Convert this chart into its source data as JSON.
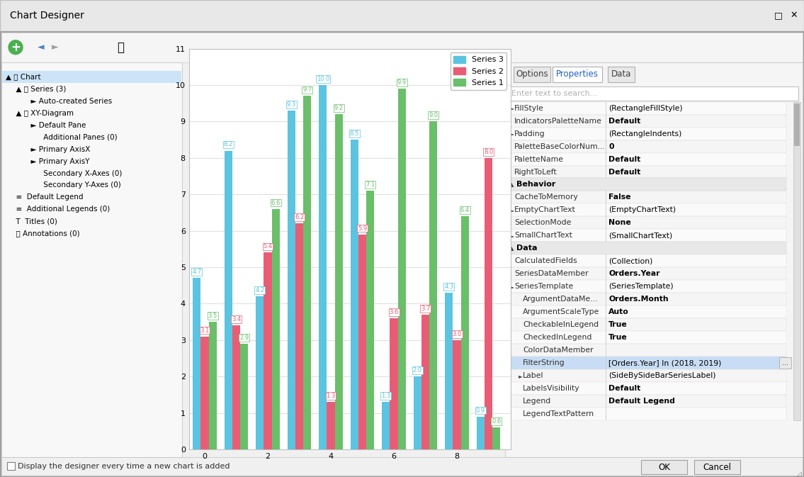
{
  "window_title": "Chart Designer",
  "window_bg": "#f0f0f0",
  "chart_bg": "#ffffff",
  "chart_border": "#c0c0c0",
  "series3_color": "#5bc4e0",
  "series2_color": "#e85d75",
  "series1_color": "#6abf6a",
  "series3_label": "Series 3",
  "series2_label": "Series 2",
  "series1_label": "Series 1",
  "x_positions": [
    0,
    1,
    2,
    3,
    4,
    5,
    6,
    7,
    8,
    9
  ],
  "series3_values": [
    4.7,
    8.2,
    4.2,
    9.3,
    10.0,
    8.5,
    1.3,
    2.0,
    4.3,
    0.9
  ],
  "series2_values": [
    3.1,
    3.4,
    5.4,
    6.2,
    1.3,
    5.9,
    3.6,
    3.7,
    3.0,
    8.0
  ],
  "series1_values": [
    3.5,
    2.9,
    6.6,
    9.7,
    9.2,
    7.1,
    9.9,
    9.0,
    6.4,
    0.6
  ],
  "ylim": [
    0,
    11
  ],
  "yticks": [
    0,
    1,
    2,
    3,
    4,
    5,
    6,
    7,
    8,
    9,
    10,
    11
  ],
  "xticks": [
    0,
    2,
    4,
    6,
    8
  ],
  "left_panel_bg": "#f5f5f5",
  "left_panel_items": [
    [
      "chart_icon",
      "Chart",
      0
    ],
    [
      "series_icon",
      "Series (3)",
      1
    ],
    [
      "auto_icon",
      "Auto-created Series",
      2
    ],
    [
      "xy_icon",
      "XY-Diagram",
      1
    ],
    [
      "default_pane",
      "Default Pane",
      2
    ],
    [
      "additional_panes",
      "Additional Panes (0)",
      2
    ],
    [
      "primary_axisx",
      "Primary AxisX",
      2
    ],
    [
      "primary_axisy",
      "Primary AxisY",
      2
    ],
    [
      "secondary_x",
      "Secondary X-Axes (0)",
      2
    ],
    [
      "secondary_y",
      "Secondary Y-Axes (0)",
      2
    ],
    [
      "default_legend",
      "Default Legend",
      1
    ],
    [
      "additional_legends",
      "Additional Legends (0)",
      1
    ],
    [
      "titles",
      "Titles (0)",
      1
    ],
    [
      "annotations",
      "Annotations (0)",
      1
    ]
  ],
  "right_panel_bg": "#f5f5f5",
  "tab_options": "Options",
  "tab_properties": "Properties",
  "tab_data": "Data",
  "active_tab": "Properties",
  "properties": [
    {
      "section": false,
      "key": "FillStyle",
      "value": "(RectangleFillStyle)",
      "bold_val": false,
      "has_arrow": true
    },
    {
      "section": false,
      "key": "IndicatorsPaletteName",
      "value": "Default",
      "bold_val": true,
      "has_arrow": false
    },
    {
      "section": false,
      "key": "Padding",
      "value": "(RectangleIndents)",
      "bold_val": false,
      "has_arrow": true
    },
    {
      "section": false,
      "key": "PaletteBaseColorNum...",
      "value": "0",
      "bold_val": true,
      "has_arrow": false
    },
    {
      "section": false,
      "key": "PaletteName",
      "value": "Default",
      "bold_val": true,
      "has_arrow": false
    },
    {
      "section": false,
      "key": "RightToLeft",
      "value": "Default",
      "bold_val": true,
      "has_arrow": false
    },
    {
      "section": true,
      "key": "Behavior",
      "value": "",
      "bold_val": false,
      "has_arrow": false
    },
    {
      "section": false,
      "key": "CacheToMemory",
      "value": "False",
      "bold_val": true,
      "has_arrow": false
    },
    {
      "section": false,
      "key": "EmptyChartText",
      "value": "(EmptyChartText)",
      "bold_val": false,
      "has_arrow": true
    },
    {
      "section": false,
      "key": "SelectionMode",
      "value": "None",
      "bold_val": true,
      "has_arrow": false
    },
    {
      "section": false,
      "key": "SmallChartText",
      "value": "(SmallChartText)",
      "bold_val": false,
      "has_arrow": true
    },
    {
      "section": true,
      "key": "Data",
      "value": "",
      "bold_val": false,
      "has_arrow": false
    },
    {
      "section": false,
      "key": "CalculatedFields",
      "value": "(Collection)",
      "bold_val": false,
      "has_arrow": false
    },
    {
      "section": false,
      "key": "SeriesDataMember",
      "value": "Orders.Year",
      "bold_val": true,
      "has_arrow": false
    },
    {
      "section": false,
      "key": "SeriesTemplate",
      "value": "(SeriesTemplate)",
      "bold_val": false,
      "has_arrow": true,
      "expand": true
    },
    {
      "section": false,
      "key": "ArgumentDataMe...",
      "value": "Orders.Month",
      "bold_val": true,
      "has_arrow": false,
      "indent": true
    },
    {
      "section": false,
      "key": "ArgumentScaleType",
      "value": "Auto",
      "bold_val": true,
      "has_arrow": false,
      "indent": true
    },
    {
      "section": false,
      "key": "CheckableInLegend",
      "value": "True",
      "bold_val": true,
      "has_arrow": false,
      "indent": true
    },
    {
      "section": false,
      "key": "CheckedInLegend",
      "value": "True",
      "bold_val": true,
      "has_arrow": false,
      "indent": true
    },
    {
      "section": false,
      "key": "ColorDataMember",
      "value": "",
      "bold_val": false,
      "has_arrow": false,
      "indent": true
    },
    {
      "section": false,
      "key": "FilterString",
      "value": "[Orders.Year] In (2018, 2019)",
      "bold_val": false,
      "has_arrow": false,
      "indent": true,
      "highlighted": true,
      "has_dots": true
    },
    {
      "section": false,
      "key": "Label",
      "value": "(SideBySideBarSeriesLabel)",
      "bold_val": false,
      "has_arrow": true,
      "indent": true
    },
    {
      "section": false,
      "key": "LabelsVisibility",
      "value": "Default",
      "bold_val": true,
      "has_arrow": false,
      "indent": true
    },
    {
      "section": false,
      "key": "Legend",
      "value": "Default Legend",
      "bold_val": true,
      "has_arrow": false,
      "indent": true
    },
    {
      "section": false,
      "key": "LegendTextPattern",
      "value": "",
      "bold_val": false,
      "has_arrow": false,
      "indent": true
    }
  ],
  "bottom_text": "Display the designer every time a new chart is added",
  "search_placeholder": "Enter text to search...",
  "label_fontsize": 7,
  "bar_label_fontsize": 6
}
